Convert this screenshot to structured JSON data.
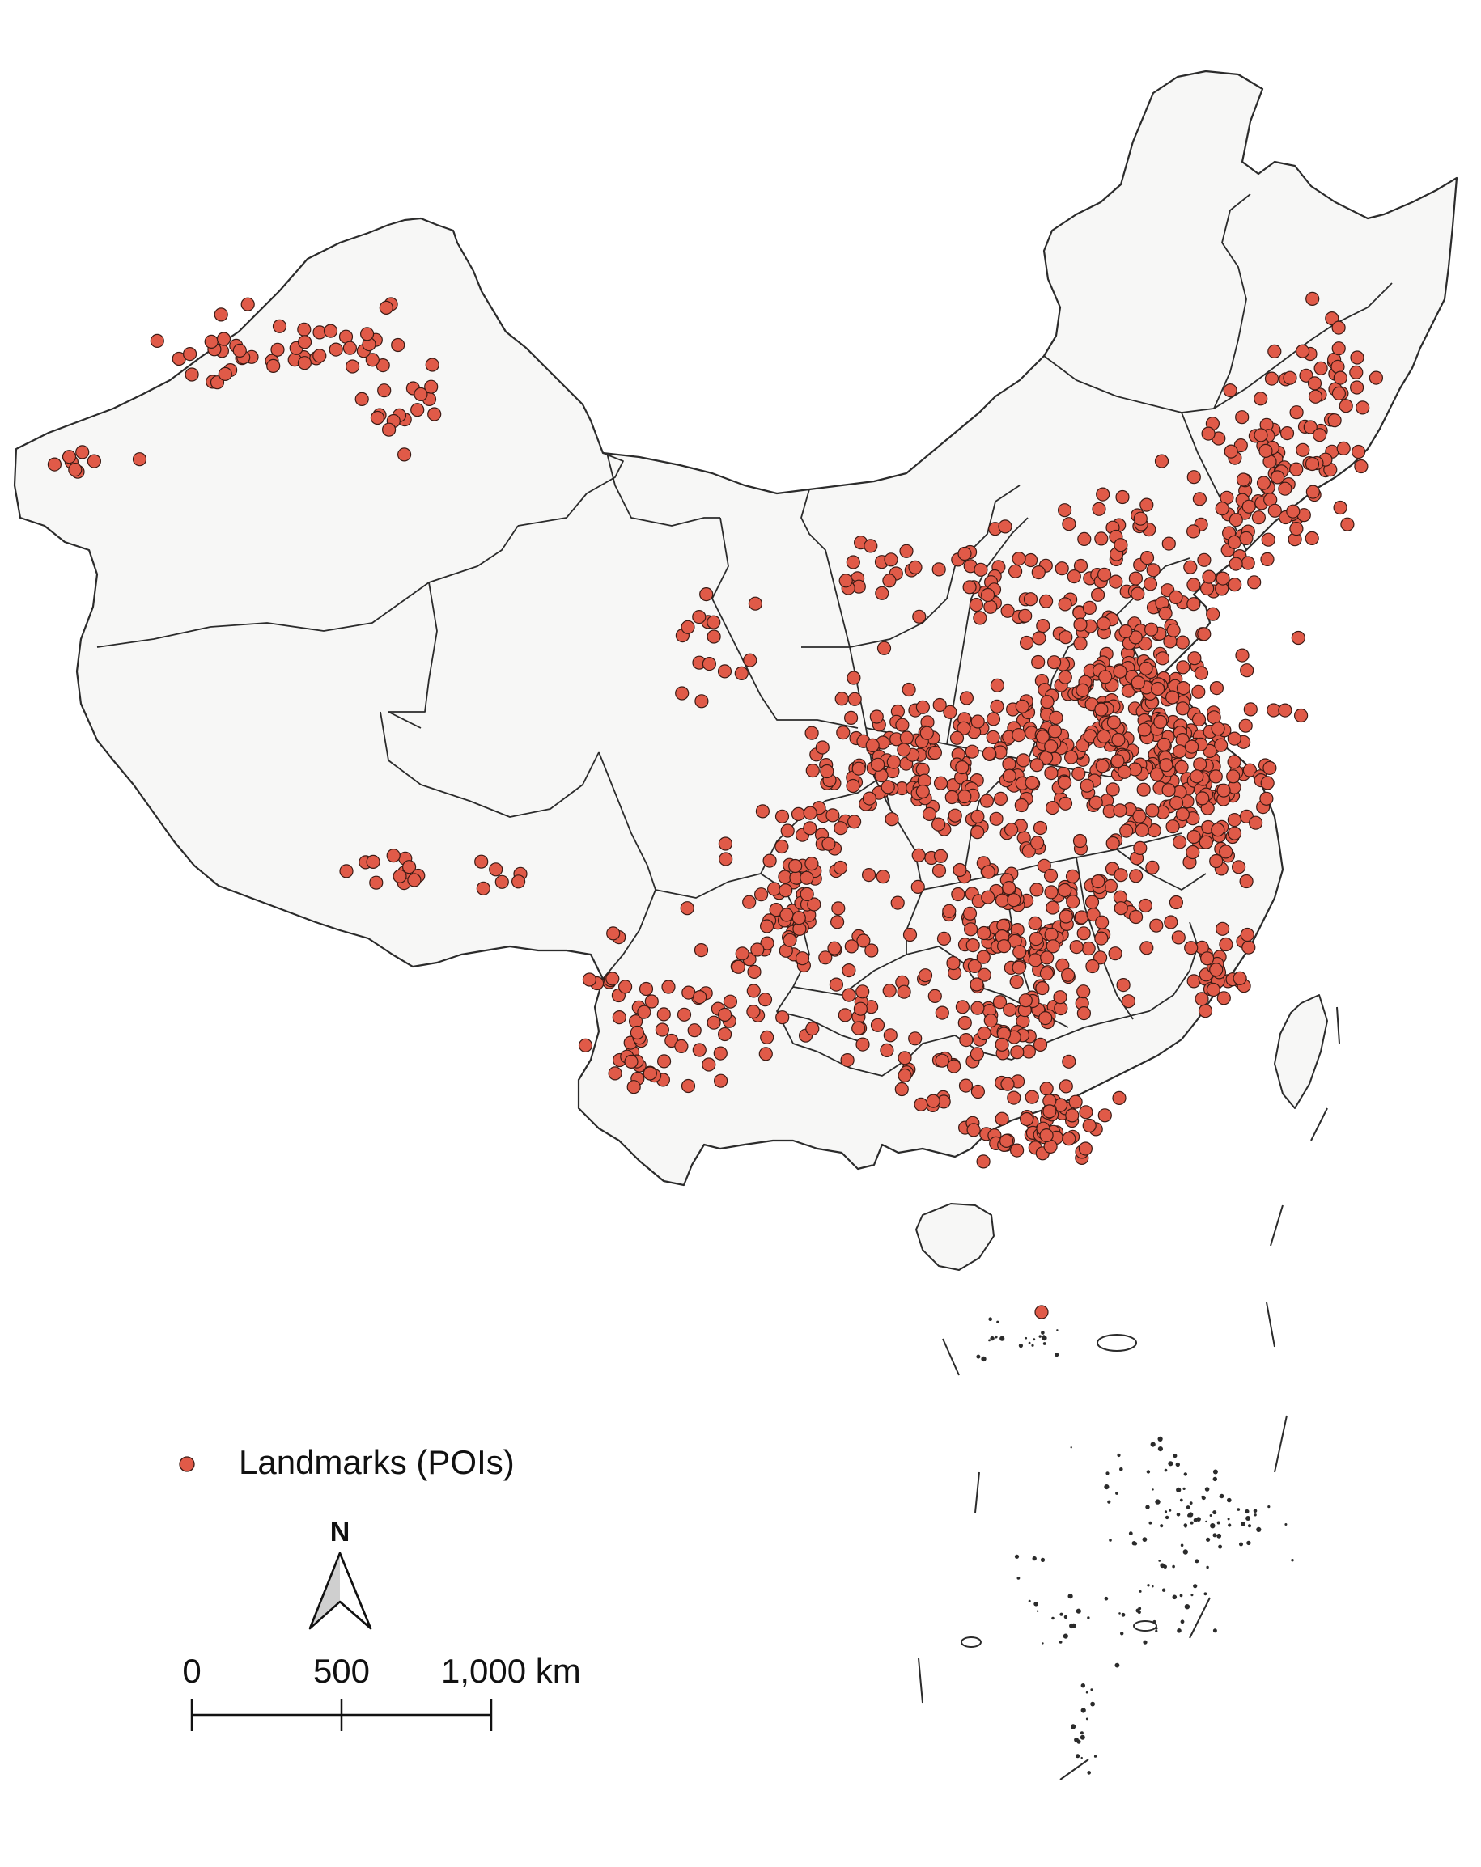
{
  "map": {
    "land_fill": "#f7f7f6",
    "border_color": "#2b2b2b",
    "poi_fill": "#e05a48",
    "poi_stroke": "#3a1a14"
  },
  "legend": {
    "label": "Landmarks (POIs)"
  },
  "north_arrow": {
    "label": "N"
  },
  "scale_bar": {
    "tick_labels": [
      "0",
      "500",
      "1,000 km"
    ]
  }
}
